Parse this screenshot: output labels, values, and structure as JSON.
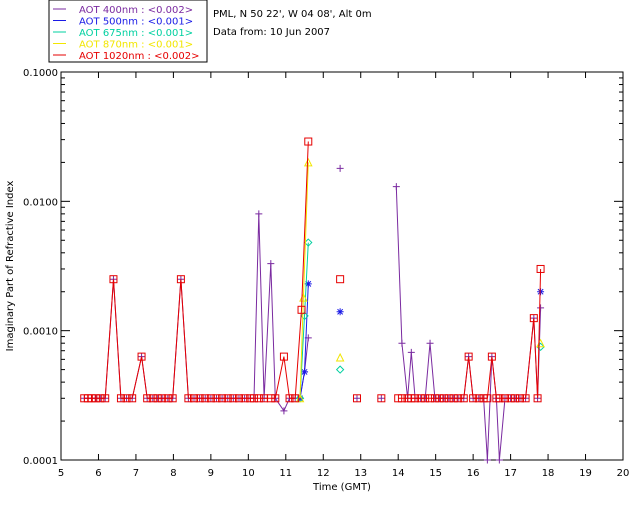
{
  "chart_data": {
    "type": "line",
    "yscale": "log",
    "title_lines": [
      "PML, N 50 22', W 04 08', Alt 0m",
      "Data from: 10 Jun 2007"
    ],
    "xlabel": "Time (GMT)",
    "ylabel": "Imaginary Part of Refractive Index",
    "xlim": [
      5,
      20
    ],
    "ylim": [
      0.0001,
      0.1
    ],
    "x_ticks": [
      5,
      6,
      7,
      8,
      9,
      10,
      11,
      12,
      13,
      14,
      15,
      16,
      17,
      18,
      19,
      20
    ],
    "x_tick_labels": [
      "5",
      "6",
      "7",
      "8",
      "9",
      "10",
      "11",
      "12",
      "13",
      "14",
      "15",
      "16",
      "17",
      "18",
      "19",
      "20"
    ],
    "y_ticks": [
      0.0001,
      0.001,
      0.01,
      0.1
    ],
    "y_tick_labels": [
      "0.0001",
      "0.0010",
      "0.0100",
      "0.1000"
    ],
    "legend": [
      {
        "label": "AOT  400nm : <0.002>",
        "color": "#7a2aa0",
        "marker": "plus"
      },
      {
        "label": "AOT  500nm : <0.001>",
        "color": "#1a1ae6",
        "marker": "star"
      },
      {
        "label": "AOT  675nm : <0.001>",
        "color": "#00d0a0",
        "marker": "diamond"
      },
      {
        "label": "AOT  870nm : <0.001>",
        "color": "#f2e600",
        "marker": "triangle"
      },
      {
        "label": "AOT 1020nm : <0.002>",
        "color": "#e60000",
        "marker": "square"
      }
    ],
    "series": [
      {
        "name": "AOT 400nm",
        "color": "#7a2aa0",
        "marker": "plus",
        "segments": [
          [
            [
              5.62,
              0.0003
            ],
            [
              5.72,
              0.0003
            ],
            [
              5.82,
              0.0003
            ],
            [
              5.93,
              0.0003
            ],
            [
              6.05,
              0.0003
            ],
            [
              6.18,
              0.0003
            ],
            [
              6.4,
              0.0025
            ],
            [
              6.6,
              0.0003
            ],
            [
              6.75,
              0.0003
            ],
            [
              6.9,
              0.0003
            ],
            [
              7.15,
              0.00063
            ],
            [
              7.3,
              0.0003
            ],
            [
              7.45,
              0.0003
            ],
            [
              7.58,
              0.0003
            ],
            [
              7.7,
              0.0003
            ],
            [
              7.85,
              0.0003
            ],
            [
              7.98,
              0.0003
            ],
            [
              8.2,
              0.0025
            ],
            [
              8.4,
              0.0003
            ],
            [
              8.55,
              0.0003
            ],
            [
              8.7,
              0.0003
            ],
            [
              8.85,
              0.0003
            ],
            [
              9.0,
              0.0003
            ],
            [
              9.15,
              0.0003
            ],
            [
              9.3,
              0.0003
            ],
            [
              9.45,
              0.0003
            ],
            [
              9.6,
              0.0003
            ],
            [
              9.75,
              0.0003
            ],
            [
              9.9,
              0.0003
            ],
            [
              10.05,
              0.0003
            ],
            [
              10.15,
              0.0003
            ],
            [
              10.28,
              0.008
            ],
            [
              10.42,
              0.0003
            ],
            [
              10.6,
              0.0033
            ],
            [
              10.72,
              0.0003
            ],
            [
              10.95,
              0.00024
            ],
            [
              11.1,
              0.0003
            ],
            [
              11.25,
              0.0003
            ],
            [
              11.38,
              0.0003
            ],
            [
              11.5,
              0.00048
            ],
            [
              11.6,
              0.00088
            ]
          ],
          [
            [
              13.95,
              0.013
            ],
            [
              14.1,
              0.0008
            ],
            [
              14.25,
              0.0003
            ],
            [
              14.35,
              0.00068
            ],
            [
              14.45,
              0.0003
            ],
            [
              14.6,
              0.0003
            ],
            [
              14.72,
              0.0003
            ],
            [
              14.85,
              0.0008
            ],
            [
              14.98,
              0.0003
            ],
            [
              15.1,
              0.0003
            ],
            [
              15.22,
              0.0003
            ],
            [
              15.35,
              0.0003
            ],
            [
              15.48,
              0.0003
            ],
            [
              15.6,
              0.0003
            ],
            [
              15.75,
              0.0003
            ],
            [
              15.88,
              0.00063
            ],
            [
              16.0,
              0.0003
            ],
            [
              16.15,
              0.0003
            ],
            [
              16.28,
              0.0003
            ],
            [
              16.38,
              0.0001
            ],
            [
              16.5,
              0.00063
            ],
            [
              16.62,
              0.0003
            ],
            [
              16.7,
              0.0001
            ],
            [
              16.85,
              0.0003
            ],
            [
              17.0,
              0.0003
            ],
            [
              17.12,
              0.0003
            ],
            [
              17.25,
              0.0003
            ],
            [
              17.4,
              0.0003
            ],
            [
              17.62,
              0.00125
            ],
            [
              17.72,
              0.0003
            ],
            [
              17.8,
              0.0015
            ]
          ]
        ],
        "points": [
          [
            12.45,
            0.018
          ],
          [
            12.9,
            0.0003
          ],
          [
            13.55,
            0.0003
          ]
        ]
      },
      {
        "name": "AOT 500nm",
        "color": "#1a1ae6",
        "marker": "star",
        "segments": [
          [
            [
              11.38,
              0.0003
            ],
            [
              11.5,
              0.00048
            ],
            [
              11.6,
              0.0023
            ]
          ]
        ],
        "points": [
          [
            12.45,
            0.0014
          ],
          [
            17.8,
            0.002
          ]
        ]
      },
      {
        "name": "AOT 675nm",
        "color": "#00d0a0",
        "marker": "diamond",
        "segments": [
          [
            [
              11.38,
              0.0003
            ],
            [
              11.5,
              0.0013
            ],
            [
              11.6,
              0.0048
            ]
          ]
        ],
        "points": [
          [
            12.45,
            0.0005
          ],
          [
            17.8,
            0.00075
          ]
        ]
      },
      {
        "name": "AOT 870nm",
        "color": "#f2e600",
        "marker": "triangle",
        "segments": [
          [
            [
              11.38,
              0.0003
            ],
            [
              11.47,
              0.0018
            ],
            [
              11.6,
              0.02
            ]
          ]
        ],
        "points": [
          [
            12.45,
            0.00062
          ],
          [
            17.8,
            0.0008
          ]
        ]
      },
      {
        "name": "AOT 1020nm",
        "color": "#e60000",
        "marker": "square",
        "segments": [
          [
            [
              5.62,
              0.0003
            ],
            [
              5.72,
              0.0003
            ],
            [
              5.82,
              0.0003
            ],
            [
              5.93,
              0.0003
            ],
            [
              6.05,
              0.0003
            ],
            [
              6.18,
              0.0003
            ],
            [
              6.4,
              0.0025
            ],
            [
              6.6,
              0.0003
            ],
            [
              6.75,
              0.0003
            ],
            [
              6.9,
              0.0003
            ],
            [
              7.15,
              0.00063
            ],
            [
              7.3,
              0.0003
            ],
            [
              7.45,
              0.0003
            ],
            [
              7.58,
              0.0003
            ],
            [
              7.7,
              0.0003
            ],
            [
              7.85,
              0.0003
            ],
            [
              7.98,
              0.0003
            ],
            [
              8.2,
              0.0025
            ],
            [
              8.4,
              0.0003
            ],
            [
              8.55,
              0.0003
            ],
            [
              8.7,
              0.0003
            ],
            [
              8.85,
              0.0003
            ],
            [
              9.0,
              0.0003
            ],
            [
              9.15,
              0.0003
            ],
            [
              9.3,
              0.0003
            ],
            [
              9.45,
              0.0003
            ],
            [
              9.6,
              0.0003
            ],
            [
              9.75,
              0.0003
            ],
            [
              9.9,
              0.0003
            ],
            [
              10.05,
              0.0003
            ],
            [
              10.15,
              0.0003
            ],
            [
              10.28,
              0.0003
            ],
            [
              10.42,
              0.0003
            ],
            [
              10.6,
              0.0003
            ],
            [
              10.72,
              0.0003
            ],
            [
              10.95,
              0.00063
            ],
            [
              11.1,
              0.0003
            ],
            [
              11.25,
              0.0003
            ],
            [
              11.42,
              0.00145
            ],
            [
              11.6,
              0.029
            ]
          ],
          [
            [
              14.0,
              0.0003
            ],
            [
              14.1,
              0.0003
            ],
            [
              14.25,
              0.0003
            ],
            [
              14.35,
              0.0003
            ],
            [
              14.45,
              0.0003
            ],
            [
              14.6,
              0.0003
            ],
            [
              14.72,
              0.0003
            ],
            [
              14.85,
              0.0003
            ],
            [
              14.98,
              0.0003
            ],
            [
              15.1,
              0.0003
            ],
            [
              15.22,
              0.0003
            ],
            [
              15.35,
              0.0003
            ],
            [
              15.48,
              0.0003
            ],
            [
              15.6,
              0.0003
            ],
            [
              15.75,
              0.0003
            ],
            [
              15.88,
              0.00063
            ],
            [
              16.0,
              0.0003
            ],
            [
              16.15,
              0.0003
            ],
            [
              16.28,
              0.0003
            ],
            [
              16.38,
              0.0003
            ],
            [
              16.5,
              0.00063
            ],
            [
              16.62,
              0.0003
            ],
            [
              16.7,
              0.0003
            ],
            [
              16.85,
              0.0003
            ],
            [
              17.0,
              0.0003
            ],
            [
              17.12,
              0.0003
            ],
            [
              17.25,
              0.0003
            ],
            [
              17.4,
              0.0003
            ],
            [
              17.62,
              0.00125
            ],
            [
              17.72,
              0.0003
            ],
            [
              17.8,
              0.003
            ]
          ]
        ],
        "points": [
          [
            12.45,
            0.0025
          ],
          [
            12.9,
            0.0003
          ],
          [
            13.55,
            0.0003
          ]
        ]
      }
    ]
  }
}
